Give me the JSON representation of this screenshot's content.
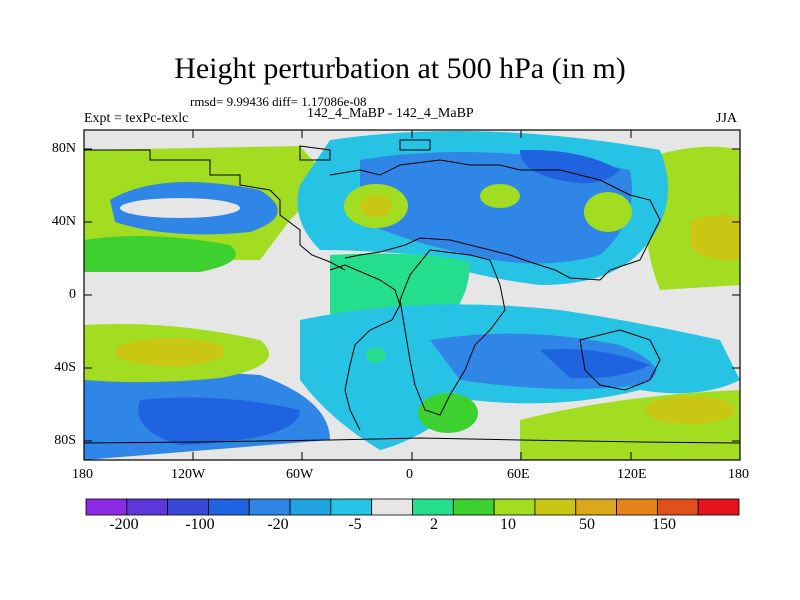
{
  "title": "Height perturbation at 500 hPa (in m)",
  "stats": "rmsd= 9.99436 diff= 1.17086e-08",
  "experiment": "Expt = texPc-texlc",
  "run_label": "142_4_MaBP - 142_4_MaBP",
  "season": "JJA",
  "lat_ticks": [
    "80N",
    "40N",
    "0",
    "40S",
    "80S"
  ],
  "lon_ticks": [
    "180",
    "120W",
    "60W",
    "0",
    "60E",
    "120E",
    "180"
  ],
  "colorbar": {
    "colors": [
      "#8a2be2",
      "#5d38d8",
      "#3a48d8",
      "#1f63e0",
      "#2f86e6",
      "#1fa4e0",
      "#27c3e4",
      "#e6e6e6",
      "#25de8d",
      "#3cd12e",
      "#a2dd21",
      "#c9c714",
      "#dba81c",
      "#e6831a",
      "#e0501a",
      "#e3141a"
    ],
    "labels": [
      "-200",
      "-100",
      "-20",
      "-5",
      "2",
      "10",
      "50",
      "150"
    ]
  }
}
